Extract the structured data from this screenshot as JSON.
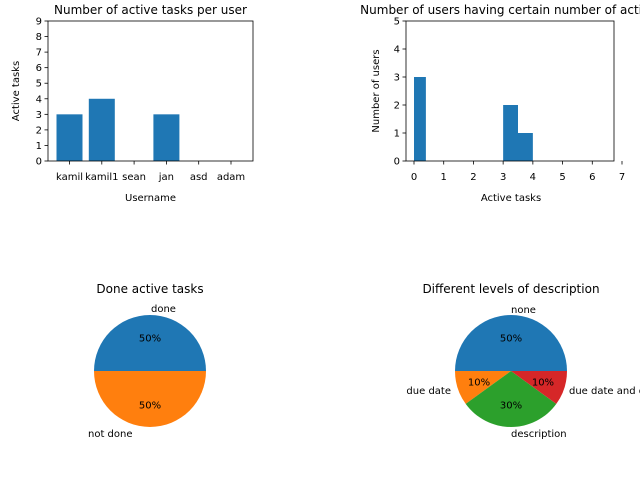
{
  "chart_data": [
    {
      "type": "bar",
      "title": "Number of active tasks per user",
      "xlabel": "Username",
      "ylabel": "Active tasks",
      "categories": [
        "kamil",
        "kamil1",
        "sean",
        "jan",
        "asd",
        "adam"
      ],
      "values": [
        3,
        4,
        0,
        3,
        0,
        0
      ],
      "yticks": [
        0,
        1,
        2,
        3,
        4,
        5,
        6,
        7,
        8,
        9
      ],
      "ylim": [
        0,
        9
      ],
      "color": "#1f77b4",
      "grid": false
    },
    {
      "type": "bar",
      "title": "Number of users having certain number of active tasks",
      "xlabel": "Active tasks",
      "ylabel": "Number of users",
      "bins": [
        {
          "start": 0.0,
          "end": 0.4,
          "count": 3
        },
        {
          "start": 3.0,
          "end": 3.5,
          "count": 2
        },
        {
          "start": 3.5,
          "end": 4.0,
          "count": 1
        }
      ],
      "xticks": [
        0,
        1,
        2,
        3,
        4,
        5,
        6,
        7
      ],
      "yticks": [
        0,
        1,
        2,
        3,
        4,
        5
      ],
      "xlim": [
        0,
        7
      ],
      "ylim": [
        0,
        5
      ],
      "color": "#1f77b4",
      "grid": false
    },
    {
      "type": "pie",
      "title": "Done active tasks",
      "slices": [
        {
          "label": "done",
          "value": 50,
          "pct": "50%",
          "color": "#1f77b4"
        },
        {
          "label": "not done",
          "value": 50,
          "pct": "50%",
          "color": "#ff7f0e"
        }
      ]
    },
    {
      "type": "pie",
      "title": "Different levels of description",
      "slices": [
        {
          "label": "none",
          "value": 50,
          "pct": "50%",
          "color": "#1f77b4"
        },
        {
          "label": "due date",
          "value": 10,
          "pct": "10%",
          "color": "#ff7f0e"
        },
        {
          "label": "description",
          "value": 30,
          "pct": "30%",
          "color": "#2ca02c"
        },
        {
          "label": "due date and description",
          "value": 10,
          "pct": "10%",
          "color": "#d62728"
        }
      ]
    }
  ]
}
